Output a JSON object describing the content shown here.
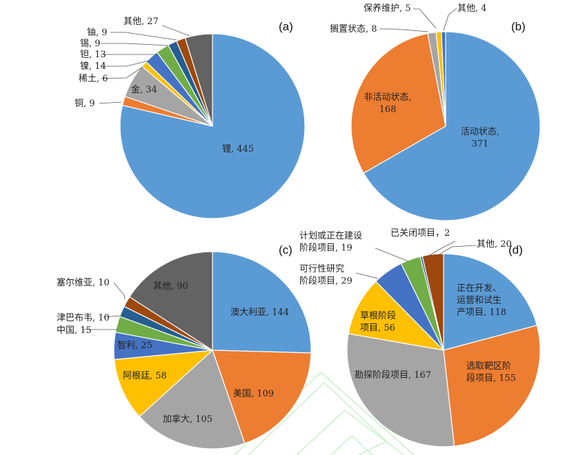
{
  "chart_data": [
    {
      "type": "pie",
      "panel_label": "(a)",
      "slices": [
        {
          "label": "锂",
          "value": 445,
          "color": "#5b9bd5"
        },
        {
          "label": "铜",
          "value": 9,
          "color": "#ed7d31"
        },
        {
          "label": "金",
          "value": 34,
          "color": "#a5a5a5"
        },
        {
          "label": "稀土",
          "value": 6,
          "color": "#ffc000"
        },
        {
          "label": "镍",
          "value": 14,
          "color": "#4472c4"
        },
        {
          "label": "钽",
          "value": 13,
          "color": "#70ad47"
        },
        {
          "label": "锡",
          "value": 9,
          "color": "#255e91"
        },
        {
          "label": "铀",
          "value": 9,
          "color": "#9e480e"
        },
        {
          "label": "其他",
          "value": 27,
          "color": "#636363"
        }
      ]
    },
    {
      "type": "pie",
      "panel_label": "(b)",
      "slices": [
        {
          "label": "活动状态",
          "value": 371,
          "color": "#5b9bd5"
        },
        {
          "label": "非活动状态",
          "value": 168,
          "color": "#ed7d31"
        },
        {
          "label": "搁置状态",
          "value": 8,
          "color": "#a5a5a5"
        },
        {
          "label": "保养维护",
          "value": 5,
          "color": "#ffc000"
        },
        {
          "label": "其他",
          "value": 4,
          "color": "#4472c4"
        }
      ]
    },
    {
      "type": "pie",
      "panel_label": "(c)",
      "slices": [
        {
          "label": "澳大利亚",
          "value": 144,
          "color": "#5b9bd5"
        },
        {
          "label": "美国",
          "value": 109,
          "color": "#ed7d31"
        },
        {
          "label": "加拿大",
          "value": 105,
          "color": "#a5a5a5"
        },
        {
          "label": "阿根廷",
          "value": 58,
          "color": "#ffc000"
        },
        {
          "label": "智利",
          "value": 25,
          "color": "#4472c4"
        },
        {
          "label": "中国",
          "value": 15,
          "color": "#70ad47"
        },
        {
          "label": "津巴布韦",
          "value": 10,
          "color": "#255e91"
        },
        {
          "label": "塞尔维亚",
          "value": 10,
          "color": "#9e480e"
        },
        {
          "label": "其他",
          "value": 90,
          "color": "#636363"
        }
      ]
    },
    {
      "type": "pie",
      "panel_label": "(d)",
      "slices": [
        {
          "label": "正在开发、运营和试生产项目",
          "value": 118,
          "color": "#5b9bd5"
        },
        {
          "label": "选取靶区阶段项目",
          "value": 155,
          "color": "#ed7d31"
        },
        {
          "label": "勘探阶段项目",
          "value": 167,
          "color": "#a5a5a5"
        },
        {
          "label": "草根阶段项目",
          "value": 56,
          "color": "#ffc000"
        },
        {
          "label": "可行性研究阶段项目",
          "value": 29,
          "color": "#4472c4"
        },
        {
          "label": "计划或正在建设阶段项目",
          "value": 19,
          "color": "#70ad47"
        },
        {
          "label": "已关闭项目",
          "value": 2,
          "color": "#255e91"
        },
        {
          "label": "其他",
          "value": 20,
          "color": "#9e480e"
        }
      ]
    }
  ],
  "labels": [
    [
      "锂, 445",
      "铜, 9",
      "金, 34",
      "稀土, 6",
      "镍, 14",
      "钽, 13",
      "锡, 9",
      "铀, 9",
      "其他, 27"
    ],
    [
      [
        "活动状态,",
        "371"
      ],
      [
        "非活动状态,",
        "168"
      ],
      "搁置状态, 8",
      "保养维护, 5",
      "其他, 4"
    ],
    [
      "澳大利亚, 144",
      "美国, 109",
      "加拿大, 105",
      "阿根廷, 58",
      "智利, 25",
      "中国, 15",
      "津巴布韦, 10",
      "塞尔维亚, 10",
      "其他, 90"
    ],
    [
      [
        "正在开发、",
        "运营和试生",
        "产项目, 118"
      ],
      [
        "选取靶区阶",
        "段项目, 155"
      ],
      "勘探阶段项目, 167",
      [
        "草根阶段",
        "项目, 56"
      ],
      [
        "可行性研究",
        "阶段项目, 29"
      ],
      [
        "计划或正在建设",
        "阶段项目, 19"
      ],
      "已关闭项目，2",
      "其他, 20"
    ]
  ]
}
